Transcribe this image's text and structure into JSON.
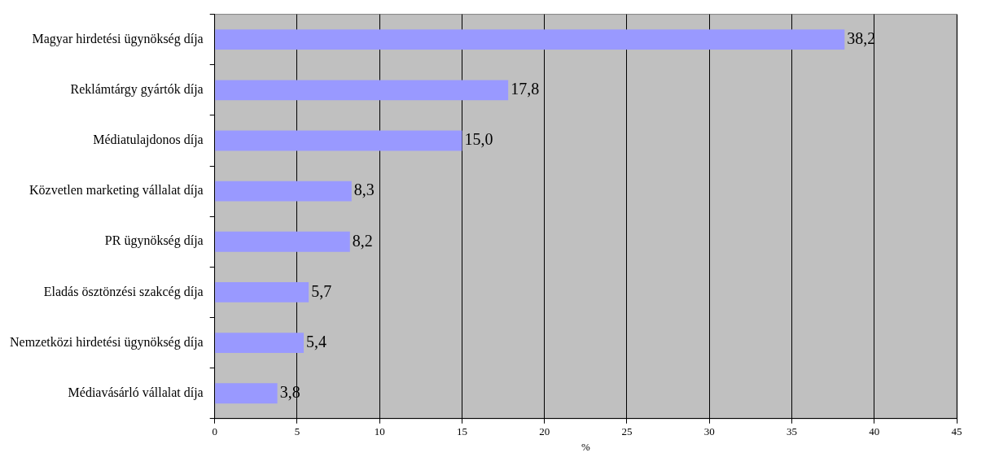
{
  "chart_data": {
    "type": "bar",
    "orientation": "horizontal",
    "xlabel": "%",
    "categories": [
      "Magyar hirdetési ügynökség díja",
      "Reklámtárgy gyártók díja",
      "Médiatulajdonos díja",
      "Közvetlen marketing vállalat díja",
      "PR ügynökség díja",
      "Eladás ösztönzési szakcég díja",
      "Nemzetközi hirdetési ügynökség díja",
      "Médiavásárló vállalat díja"
    ],
    "values": [
      38.2,
      17.8,
      15.0,
      8.3,
      8.2,
      5.7,
      5.4,
      3.8
    ],
    "value_labels": [
      "38,2",
      "17,8",
      "15,0",
      "8,3",
      "8,2",
      "5,7",
      "5,4",
      "3,8"
    ],
    "color": "#9999ff",
    "xlim": [
      0,
      45
    ],
    "xticks": [
      0,
      5,
      10,
      15,
      20,
      25,
      30,
      35,
      40,
      45
    ],
    "grid": "x",
    "legend": false
  }
}
